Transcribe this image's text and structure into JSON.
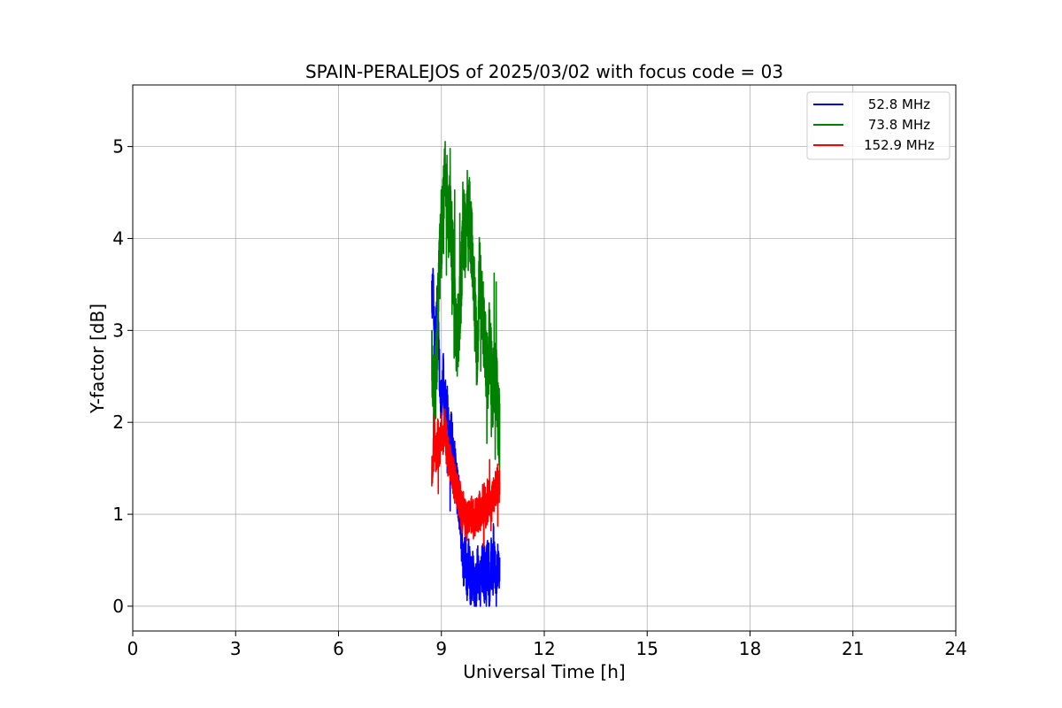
{
  "chart_data": {
    "type": "line",
    "title": "SPAIN-PERALEJOS of 2025/03/02 with focus code = 03",
    "xlabel": "Universal Time [h]",
    "ylabel": "Y-factor [dB]",
    "xlim": [
      0,
      24
    ],
    "ylim": [
      -0.27,
      5.67
    ],
    "xticks": [
      0,
      3,
      6,
      9,
      12,
      15,
      18,
      21,
      24
    ],
    "yticks": [
      0,
      1,
      2,
      3,
      4,
      5
    ],
    "grid": true,
    "legend_position": "top-right",
    "series": [
      {
        "name": "52.8 MHz",
        "color": "#0000ff",
        "anchor_x": [
          8.72,
          8.76,
          8.8,
          8.85,
          8.9,
          8.95,
          9.0,
          9.05,
          9.1,
          9.15,
          9.2,
          9.25,
          9.3,
          9.35,
          9.4,
          9.45,
          9.5,
          9.55,
          9.6,
          9.65,
          9.7,
          9.75,
          9.8,
          9.85,
          9.9,
          9.95,
          10.0,
          10.05,
          10.1,
          10.15,
          10.2,
          10.25,
          10.3,
          10.35,
          10.4,
          10.45,
          10.5,
          10.55,
          10.6,
          10.65,
          10.7
        ],
        "anchor_y": [
          3.35,
          3.45,
          2.9,
          3.1,
          3.3,
          2.4,
          2.2,
          2.55,
          2.1,
          2.3,
          1.9,
          1.75,
          1.95,
          1.6,
          1.5,
          1.3,
          1.2,
          1.0,
          0.65,
          0.45,
          0.55,
          0.3,
          0.5,
          0.25,
          0.35,
          0.3,
          0.15,
          0.4,
          0.3,
          0.2,
          0.5,
          0.25,
          0.35,
          0.45,
          0.25,
          0.5,
          0.35,
          0.45,
          0.3,
          0.5,
          0.45
        ],
        "noise": 0.28
      },
      {
        "name": "73.8 MHz",
        "color": "#008000",
        "anchor_x": [
          8.72,
          8.78,
          8.85,
          8.9,
          8.95,
          9.0,
          9.05,
          9.1,
          9.15,
          9.2,
          9.25,
          9.3,
          9.35,
          9.4,
          9.45,
          9.5,
          9.55,
          9.6,
          9.65,
          9.7,
          9.75,
          9.8,
          9.85,
          9.9,
          9.95,
          10.0,
          10.05,
          10.1,
          10.15,
          10.2,
          10.25,
          10.3,
          10.35,
          10.4,
          10.45,
          10.5,
          10.55,
          10.6,
          10.65,
          10.7
        ],
        "anchor_y": [
          2.6,
          2.3,
          2.5,
          3.2,
          3.7,
          4.0,
          4.3,
          4.85,
          4.6,
          4.2,
          4.35,
          4.0,
          3.7,
          3.2,
          2.9,
          3.0,
          3.3,
          3.7,
          4.1,
          4.0,
          4.3,
          4.35,
          4.1,
          3.9,
          3.5,
          3.0,
          2.7,
          3.6,
          3.5,
          3.2,
          3.0,
          2.7,
          2.5,
          2.9,
          2.6,
          2.3,
          2.55,
          2.4,
          2.1,
          1.9
        ],
        "noise": 0.45
      },
      {
        "name": "152.9 MHz",
        "color": "#ff0000",
        "anchor_x": [
          8.72,
          8.76,
          8.8,
          8.85,
          8.9,
          8.95,
          9.0,
          9.05,
          9.1,
          9.15,
          9.2,
          9.25,
          9.3,
          9.35,
          9.4,
          9.45,
          9.5,
          9.55,
          9.6,
          9.65,
          9.7,
          9.75,
          9.8,
          9.85,
          9.9,
          9.95,
          10.0,
          10.05,
          10.1,
          10.15,
          10.2,
          10.25,
          10.3,
          10.35,
          10.4,
          10.45,
          10.5,
          10.55,
          10.6,
          10.65,
          10.7
        ],
        "anchor_y": [
          1.5,
          1.6,
          1.8,
          1.65,
          1.85,
          1.7,
          1.9,
          1.8,
          1.95,
          1.75,
          1.6,
          1.55,
          1.5,
          1.4,
          1.3,
          1.25,
          1.2,
          1.15,
          1.0,
          1.05,
          0.95,
          0.9,
          1.0,
          0.95,
          1.05,
          0.9,
          1.0,
          0.95,
          1.05,
          1.0,
          1.1,
          1.15,
          1.05,
          1.1,
          1.2,
          1.1,
          1.2,
          1.25,
          1.3,
          1.35,
          1.3
        ],
        "noise": 0.22
      }
    ]
  }
}
